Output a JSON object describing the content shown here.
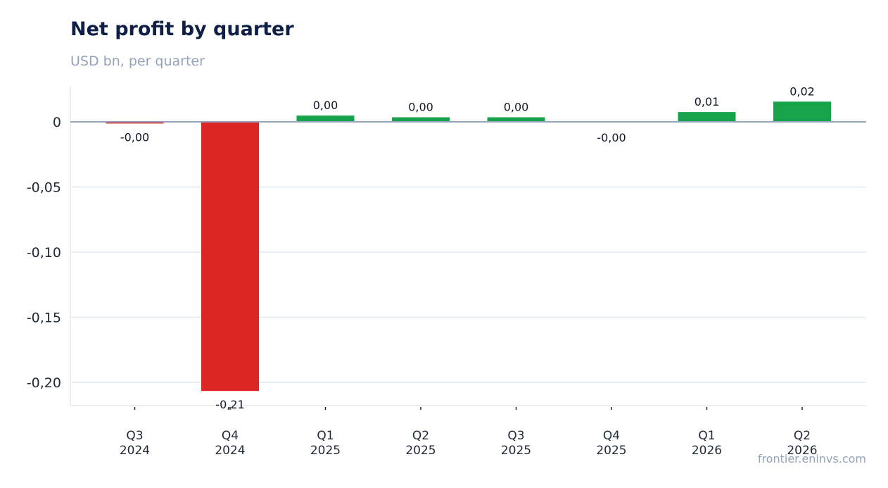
{
  "header": {
    "title": "Net profit by quarter",
    "subtitle": "USD bn, per quarter"
  },
  "footer": {
    "watermark": "frontier.eninvs.com"
  },
  "colors": {
    "positive": "#16a34a",
    "negative": "#dc2626",
    "grid": "#e2e8f0",
    "zero_line": "#94a3b8",
    "axis_text": "#1f2937"
  },
  "chart_data": {
    "type": "bar",
    "title": "Net profit by quarter",
    "subtitle": "USD bn, per quarter",
    "xlabel": "",
    "ylabel": "",
    "categories": [
      [
        "Q3",
        "2024"
      ],
      [
        "Q4",
        "2024"
      ],
      [
        "Q1",
        "2025"
      ],
      [
        "Q2",
        "2025"
      ],
      [
        "Q3",
        "2025"
      ],
      [
        "Q4",
        "2025"
      ],
      [
        "Q1",
        "2026"
      ],
      [
        "Q2",
        "2026"
      ]
    ],
    "values": [
      -0.0013,
      -0.2066,
      0.0048,
      0.0035,
      0.0035,
      -0.0002,
      0.0075,
      0.0155
    ],
    "data_labels": [
      "-0,00",
      "-0,21",
      "0,00",
      "0,00",
      "0,00",
      "-0,00",
      "0,01",
      "0,02"
    ],
    "ylim": [
      -0.218,
      0.027
    ],
    "yticks": [
      0,
      -0.05,
      -0.1,
      -0.15,
      -0.2
    ],
    "ytick_labels": [
      "0",
      "-0,05",
      "-0,10",
      "-0,15",
      "-0,20"
    ],
    "grid": true,
    "legend": "none"
  }
}
